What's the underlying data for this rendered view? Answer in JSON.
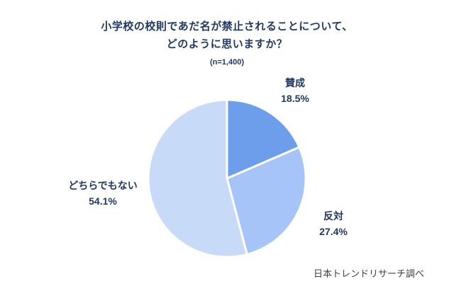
{
  "header": {
    "title_line1": "小学校の校則であだ名が禁止されることについて、",
    "title_line2": "どのように思いますか？",
    "sample_size": "(n=1,400)"
  },
  "footer": {
    "source": "日本トレンドリサーチ調べ"
  },
  "chart_data": {
    "type": "pie",
    "title": "小学校の校則であだ名が禁止されることについて、どのように思いますか？",
    "subtitle": "(n=1,400)",
    "n": 1400,
    "categories": [
      "賛成",
      "反対",
      "どちらでもない"
    ],
    "values": [
      18.5,
      27.4,
      54.1
    ],
    "value_labels": [
      "18.5%",
      "27.4%",
      "54.1%"
    ],
    "colors": [
      "#6D9EEB",
      "#A6C4F7",
      "#C7DBF8"
    ],
    "slice_border_color": "#FFFFFF",
    "start_angle_deg": 0,
    "direction": "clockwise",
    "legend_position": "outside-labels",
    "text_color": "#1F3864"
  }
}
